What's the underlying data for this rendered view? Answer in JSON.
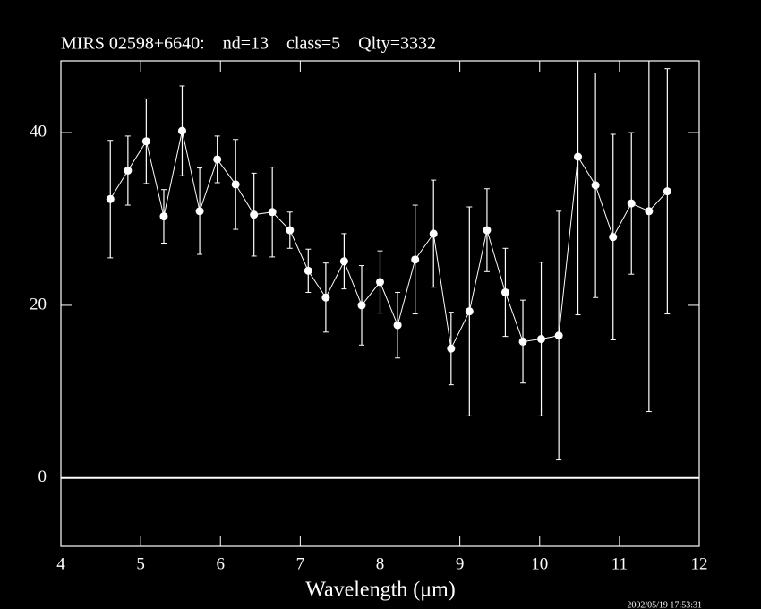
{
  "chart_data": {
    "type": "errorbar",
    "title": "MIRS 02598+6640:    nd=13    class=5    Qlty=3332",
    "x_label": "Wavelength (μm)",
    "timestamp": "2002/05/19 17:53:31",
    "x": [
      4.62,
      4.84,
      5.07,
      5.29,
      5.52,
      5.74,
      5.96,
      6.19,
      6.42,
      6.65,
      6.87,
      7.1,
      7.32,
      7.55,
      7.77,
      8.0,
      8.22,
      8.44,
      8.67,
      8.89,
      9.12,
      9.34,
      9.57,
      9.79,
      10.02,
      10.24,
      10.48,
      10.7,
      10.92,
      11.15,
      11.37,
      11.6
    ],
    "values": [
      32.3,
      35.6,
      39.0,
      30.3,
      40.2,
      30.9,
      36.9,
      34.0,
      30.5,
      30.8,
      28.7,
      24.0,
      20.9,
      25.1,
      20.0,
      22.7,
      17.7,
      25.3,
      28.3,
      15.0,
      19.3,
      28.7,
      21.5,
      15.8,
      16.1,
      16.5,
      37.2,
      33.9,
      27.9,
      31.8,
      30.9,
      33.2
    ],
    "errors": [
      6.8,
      4.0,
      4.9,
      3.1,
      5.2,
      5.0,
      2.7,
      5.2,
      4.8,
      5.2,
      2.1,
      2.5,
      4.0,
      3.2,
      4.6,
      3.6,
      3.8,
      6.3,
      6.2,
      4.2,
      12.1,
      4.8,
      5.1,
      4.8,
      8.9,
      14.4,
      18.3,
      13.0,
      11.9,
      8.2,
      23.2,
      14.2
    ],
    "color": "#ffffff",
    "xlim": [
      4,
      12
    ],
    "xticks": [
      4,
      5,
      6,
      7,
      8,
      9,
      10,
      11,
      12
    ],
    "ylim": [
      -7.9,
      48.3
    ],
    "yticks": [
      0,
      20,
      40
    ],
    "zero_line": true
  }
}
